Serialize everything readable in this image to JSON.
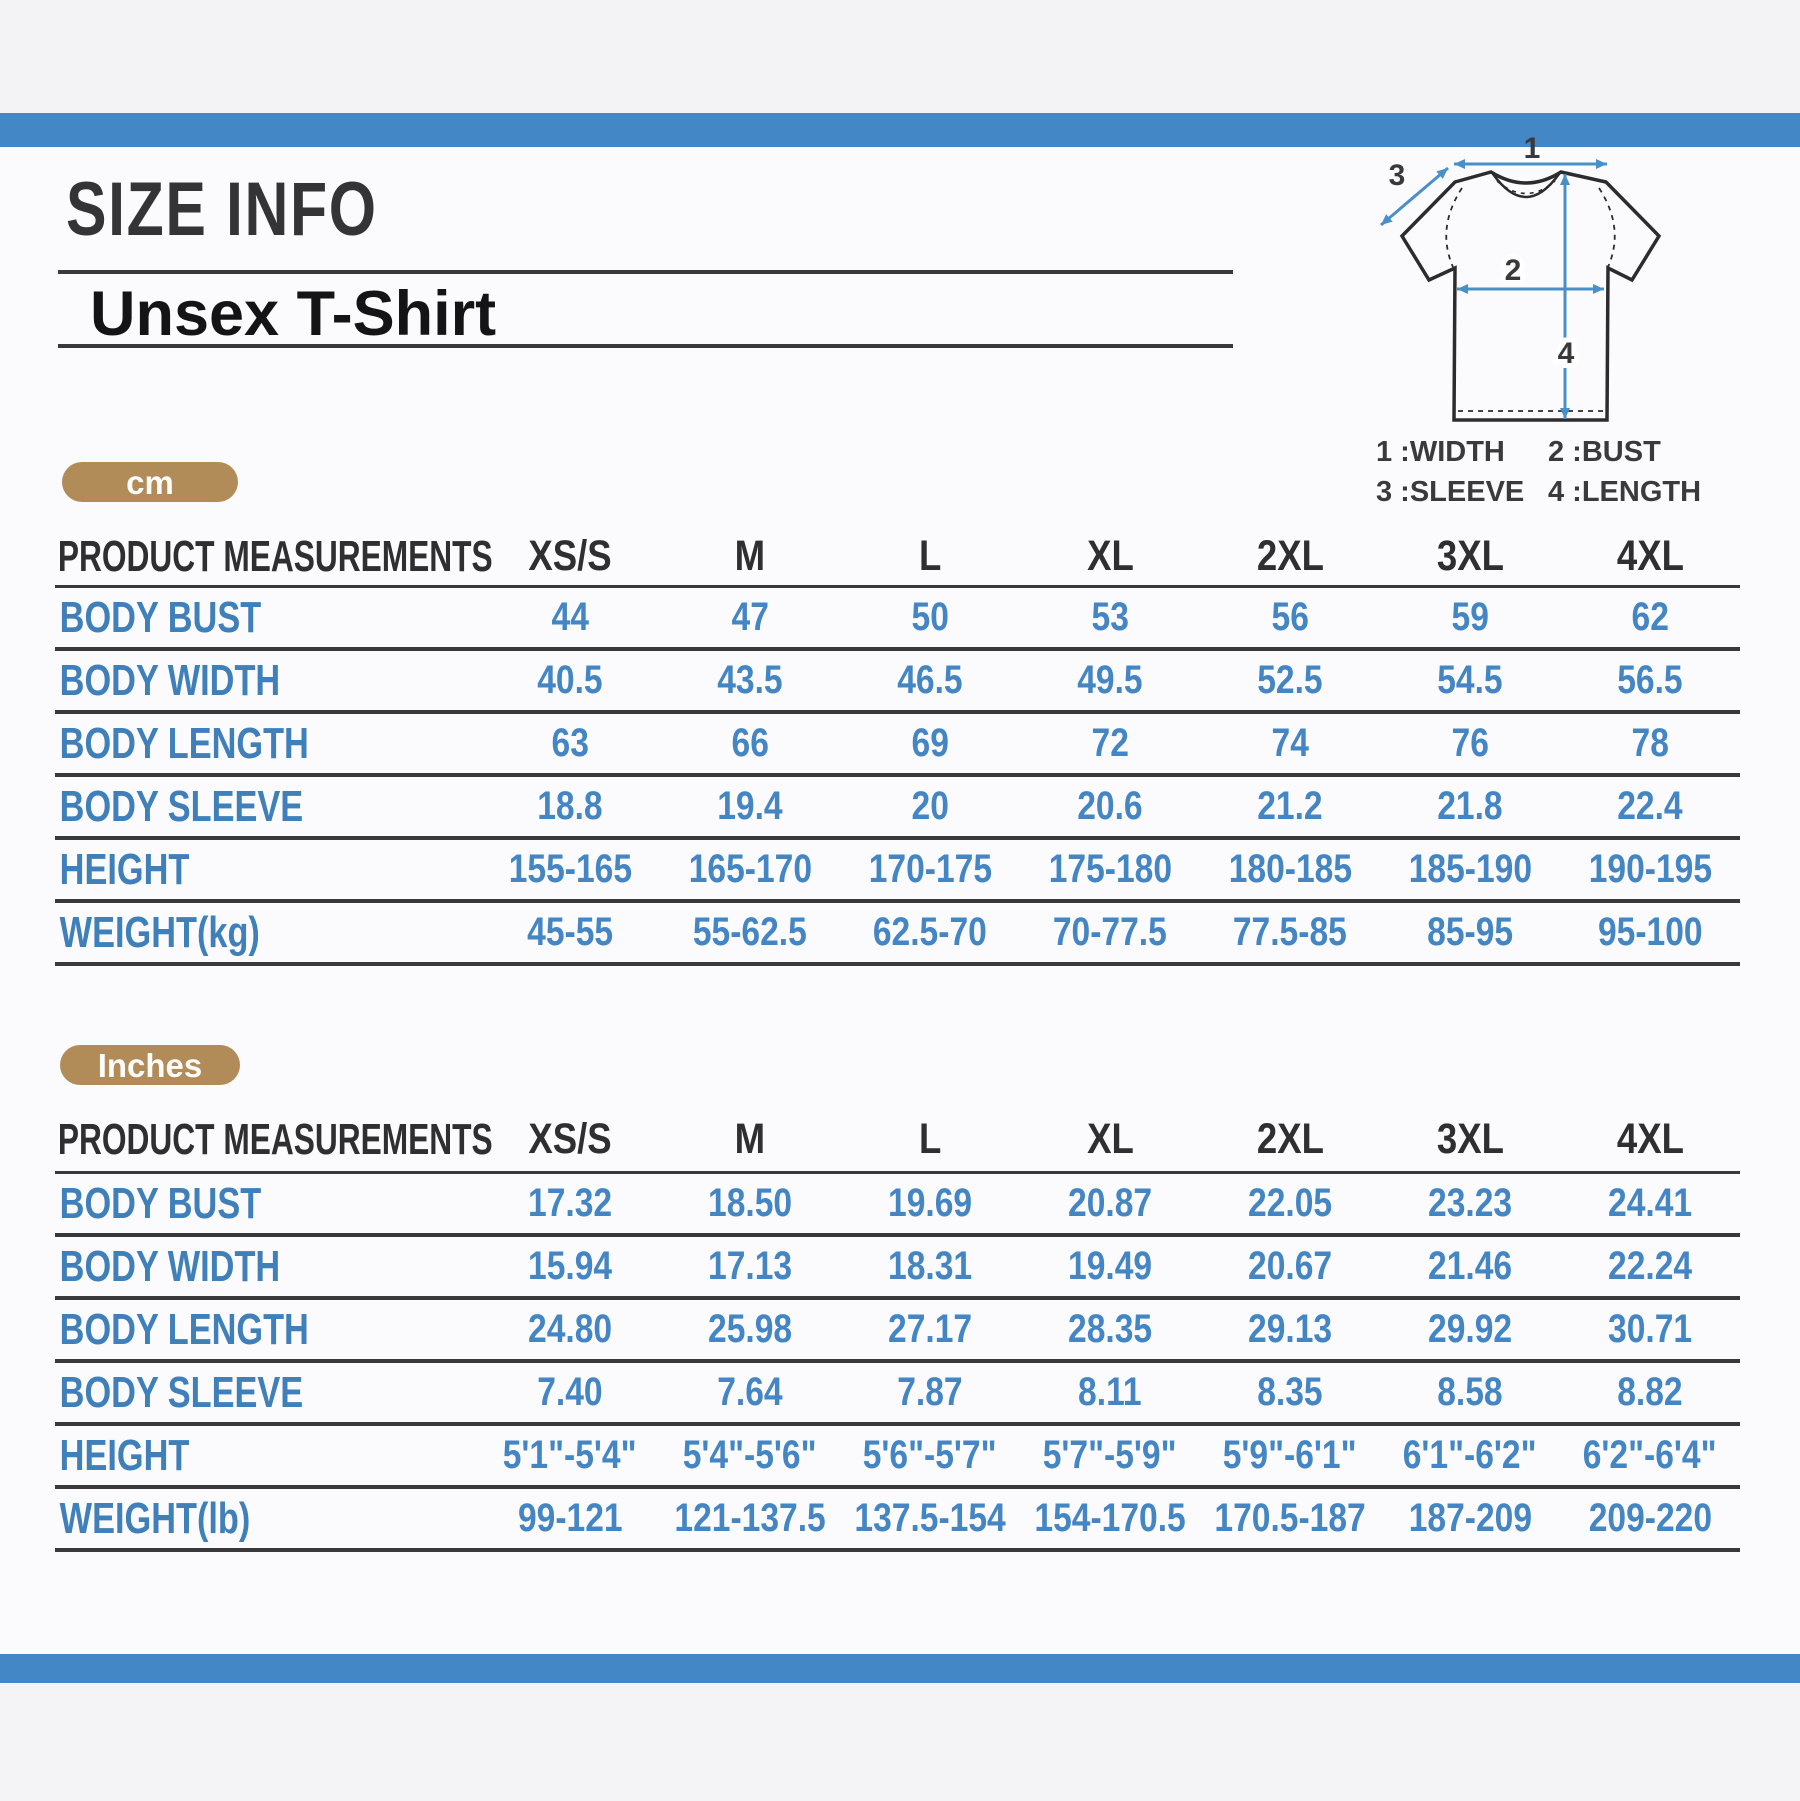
{
  "header": {
    "title": "SIZE INFO",
    "subtitle": "Unsex T-Shirt"
  },
  "diagram": {
    "marker_1": "1",
    "marker_2": "2",
    "marker_3": "3",
    "marker_4": "4",
    "legend": [
      "1 :WIDTH",
      "2 :BUST",
      "3 :SLEEVE",
      "4 :LENGTH"
    ]
  },
  "colors": {
    "accent_blue": "#4387c7",
    "text_blue": "#4485c4",
    "badge_tan": "#b28c58",
    "line_dark": "#39383b"
  },
  "tables": [
    {
      "unit_badge": "cm",
      "columns": [
        "PRODUCT MEASUREMENTS",
        "XS/S",
        "M",
        "L",
        "XL",
        "2XL",
        "3XL",
        "4XL"
      ],
      "rows": [
        {
          "label": "BODY BUST",
          "values": [
            "44",
            "47",
            "50",
            "53",
            "56",
            "59",
            "62"
          ]
        },
        {
          "label": "BODY WIDTH",
          "values": [
            "40.5",
            "43.5",
            "46.5",
            "49.5",
            "52.5",
            "54.5",
            "56.5"
          ]
        },
        {
          "label": "BODY LENGTH",
          "values": [
            "63",
            "66",
            "69",
            "72",
            "74",
            "76",
            "78"
          ]
        },
        {
          "label": "BODY SLEEVE",
          "values": [
            "18.8",
            "19.4",
            "20",
            "20.6",
            "21.2",
            "21.8",
            "22.4"
          ]
        },
        {
          "label": "HEIGHT",
          "values": [
            "155-165",
            "165-170",
            "170-175",
            "175-180",
            "180-185",
            "185-190",
            "190-195"
          ]
        },
        {
          "label": "WEIGHT(kg)",
          "values": [
            "45-55",
            "55-62.5",
            "62.5-70",
            "70-77.5",
            "77.5-85",
            "85-95",
            "95-100"
          ]
        }
      ]
    },
    {
      "unit_badge": "Inches",
      "columns": [
        "PRODUCT MEASUREMENTS",
        "XS/S",
        "M",
        "L",
        "XL",
        "2XL",
        "3XL",
        "4XL"
      ],
      "rows": [
        {
          "label": "BODY BUST",
          "values": [
            "17.32",
            "18.50",
            "19.69",
            "20.87",
            "22.05",
            "23.23",
            "24.41"
          ]
        },
        {
          "label": "BODY WIDTH",
          "values": [
            "15.94",
            "17.13",
            "18.31",
            "19.49",
            "20.67",
            "21.46",
            "22.24"
          ]
        },
        {
          "label": "BODY LENGTH",
          "values": [
            "24.80",
            "25.98",
            "27.17",
            "28.35",
            "29.13",
            "29.92",
            "30.71"
          ]
        },
        {
          "label": "BODY SLEEVE",
          "values": [
            "7.40",
            "7.64",
            "7.87",
            "8.11",
            "8.35",
            "8.58",
            "8.82"
          ]
        },
        {
          "label": "HEIGHT",
          "values": [
            "5'1\"-5'4\"",
            "5'4\"-5'6\"",
            "5'6\"-5'7\"",
            "5'7\"-5'9\"",
            "5'9\"-6'1\"",
            "6'1\"-6'2\"",
            "6'2\"-6'4\""
          ]
        },
        {
          "label": "WEIGHT(lb)",
          "values": [
            "99-121",
            "121-137.5",
            "137.5-154",
            "154-170.5",
            "170.5-187",
            "187-209",
            "209-220"
          ]
        }
      ]
    }
  ]
}
